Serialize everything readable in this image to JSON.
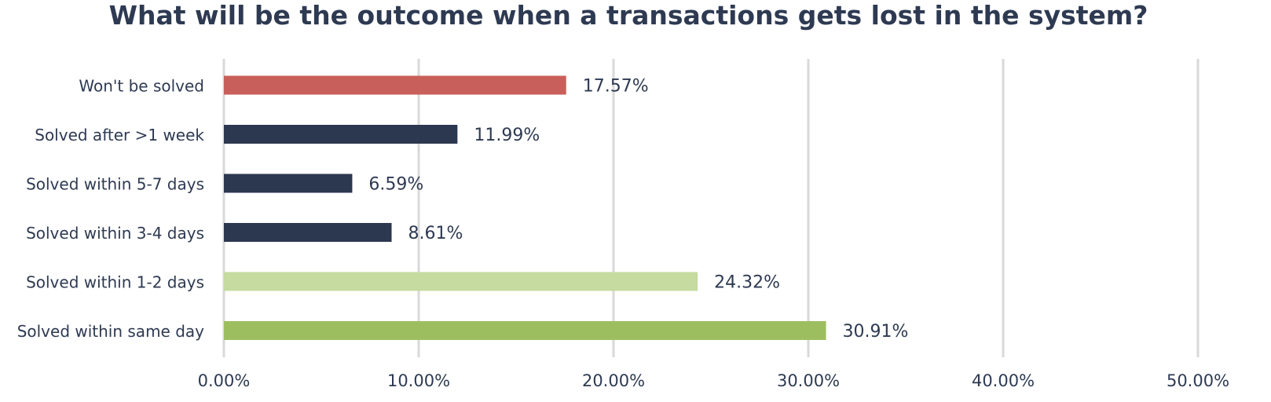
{
  "chart_data": {
    "type": "bar",
    "orientation": "horizontal",
    "title": "What will be the outcome when a transactions gets lost in the system?",
    "categories": [
      "Won't be solved",
      "Solved after >1 week",
      "Solved within 5-7 days",
      "Solved within 3-4 days",
      "Solved within 1-2 days",
      "Solved within same day"
    ],
    "values": [
      17.57,
      11.99,
      6.59,
      8.61,
      24.32,
      30.91
    ],
    "data_labels": [
      "17.57%",
      "11.99%",
      "6.59%",
      "8.61%",
      "24.32%",
      "30.91%"
    ],
    "bar_colors": [
      "#c95f5a",
      "#2c3750",
      "#2c3750",
      "#2c3750",
      "#c5dba0",
      "#9dbe5e"
    ],
    "xlim": [
      0,
      50
    ],
    "x_ticks": [
      0,
      10,
      20,
      30,
      40,
      50
    ],
    "x_tick_labels": [
      "0.00%",
      "10.00%",
      "20.00%",
      "30.00%",
      "40.00%",
      "50.00%"
    ],
    "grid": true,
    "gridline_color": "#d9d9d9",
    "text_color": "#2e3a52",
    "xlabel": "",
    "ylabel": ""
  }
}
